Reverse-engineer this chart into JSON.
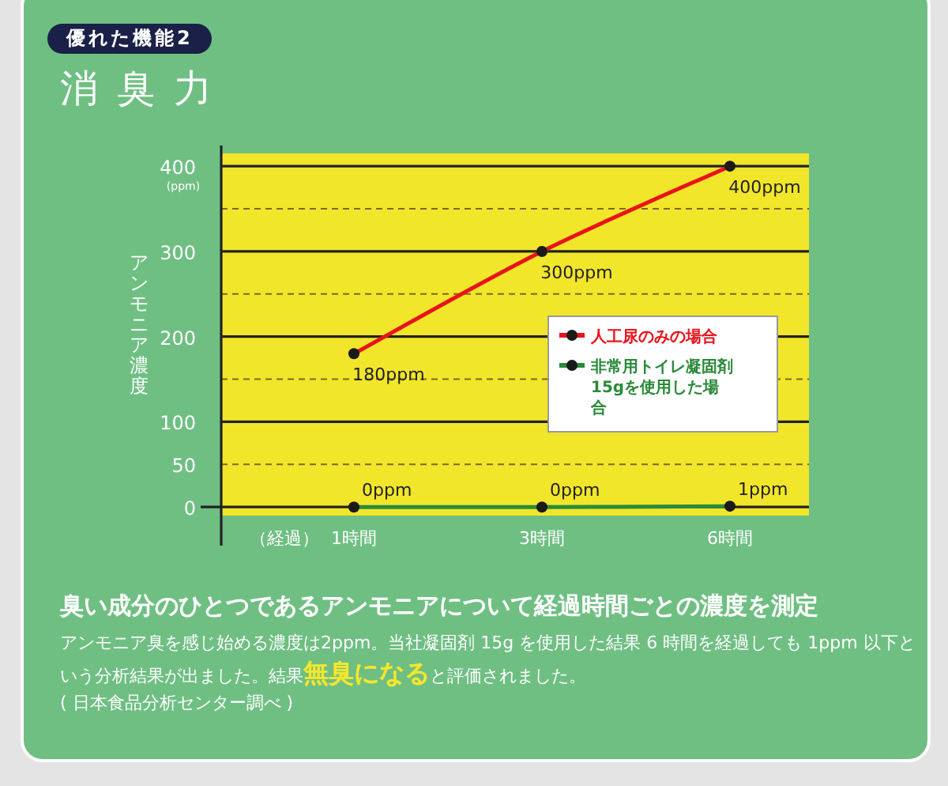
{
  "chart_data": {
    "type": "line",
    "subtitle": "優れた機能2",
    "title": "消臭力",
    "ylabel": "アンモニア濃度",
    "xlabel": "（経過）",
    "categories": [
      "1時間",
      "3時間",
      "6時間"
    ],
    "series": [
      {
        "name": "人工尿のみの場合",
        "color": "#e8141c",
        "values": [
          180,
          300,
          400
        ],
        "value_labels": [
          "180ppm",
          "300ppm",
          "400ppm"
        ]
      },
      {
        "name": "非常用トイレ凝固剤15gを使用した場合",
        "color": "#2a8a3a",
        "values": [
          0,
          0,
          1
        ],
        "value_labels": [
          "0ppm",
          "0ppm",
          "1ppm"
        ]
      }
    ],
    "ylim": [
      -10,
      415
    ],
    "yticks": [
      0,
      50,
      100,
      {
        "value": 150,
        "label": null
      },
      200,
      {
        "value": 250,
        "label": null
      },
      300,
      {
        "value": 350,
        "label": null
      },
      400
    ],
    "grid": "y",
    "legend": "right",
    "marker": "circle",
    "annotations": [
      "(ppm)",
      "臭い成分のひとつであるアンモニアについて経過時間ごとの濃度を測定",
      "アンモニア臭を感じ始める濃度は2ppm。当社凝固剤 15g を使用した結果 6 時間を経過しても 1ppm 以下という分析結果が出ました。結果",
      "無臭になる",
      "と評価されました。",
      "( 日本食品分析センター調べ )"
    ]
  }
}
